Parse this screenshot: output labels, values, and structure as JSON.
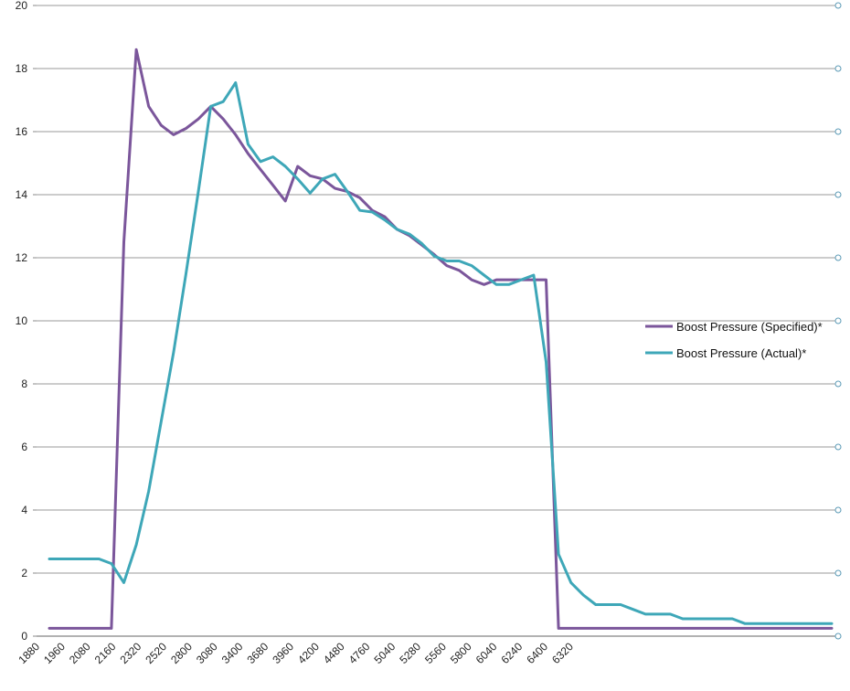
{
  "chart_data": {
    "type": "line",
    "title": "",
    "xlabel": "",
    "ylabel": "",
    "ylim": [
      0,
      20
    ],
    "yticks": [
      "0",
      "2",
      "4",
      "6",
      "8",
      "10",
      "12",
      "14",
      "16",
      "18",
      "20"
    ],
    "grid": "horizontal",
    "legend_position": "right",
    "x_tick_labels": [
      "1880",
      "1960",
      "2080",
      "2160",
      "2320",
      "2520",
      "2800",
      "3080",
      "3400",
      "3680",
      "3960",
      "4200",
      "4480",
      "4760",
      "5040",
      "5280",
      "5560",
      "5800",
      "6040",
      "6240",
      "6400",
      "6320"
    ],
    "series": [
      {
        "name": "Boost Pressure (Specified)*",
        "color": "#7b569b",
        "values": [
          0.25,
          0.25,
          0.25,
          0.25,
          0.25,
          0.25,
          12.5,
          18.6,
          16.8,
          16.2,
          15.9,
          16.1,
          16.4,
          16.8,
          16.4,
          15.9,
          15.3,
          14.8,
          14.3,
          13.8,
          14.9,
          14.6,
          14.5,
          14.2,
          14.1,
          13.9,
          13.5,
          13.3,
          12.9,
          12.7,
          12.4,
          12.1,
          11.75,
          11.6,
          11.3,
          11.15,
          11.3,
          11.3,
          11.3,
          11.3,
          11.3,
          0.25,
          0.25,
          0.25,
          0.25,
          0.25,
          0.25,
          0.25,
          0.25,
          0.25,
          0.25,
          0.25,
          0.25,
          0.25,
          0.25,
          0.25,
          0.25,
          0.25,
          0.25,
          0.25,
          0.25,
          0.25,
          0.25,
          0.25
        ]
      },
      {
        "name": "Boost Pressure (Actual)*",
        "color": "#3ea7b8",
        "values": [
          2.45,
          2.45,
          2.45,
          2.45,
          2.45,
          2.3,
          1.7,
          2.9,
          4.6,
          6.8,
          9.0,
          11.5,
          14.1,
          16.8,
          16.95,
          17.55,
          15.6,
          15.05,
          15.2,
          14.9,
          14.5,
          14.05,
          14.5,
          14.65,
          14.1,
          13.5,
          13.45,
          13.2,
          12.9,
          12.75,
          12.45,
          12.05,
          11.9,
          11.9,
          11.75,
          11.45,
          11.15,
          11.15,
          11.3,
          11.45,
          8.7,
          2.6,
          1.7,
          1.3,
          1.0,
          1.0,
          1.0,
          0.85,
          0.7,
          0.7,
          0.7,
          0.55,
          0.55,
          0.55,
          0.55,
          0.55,
          0.4,
          0.4,
          0.4,
          0.4,
          0.4,
          0.4,
          0.4,
          0.4
        ]
      }
    ]
  }
}
